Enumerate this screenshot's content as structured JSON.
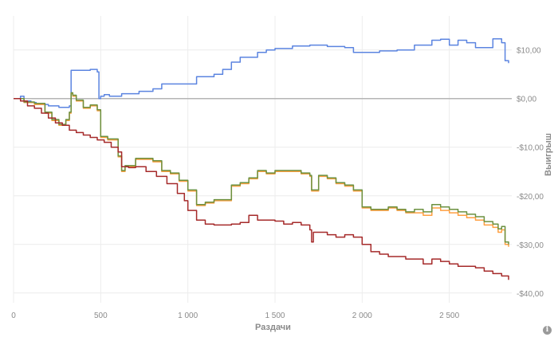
{
  "chart_data": {
    "type": "line",
    "xlabel": "Раздачи",
    "ylabel": "Выигрыш",
    "xlim": [
      0,
      2840
    ],
    "ylim": [
      -42,
      17
    ],
    "x_ticks": [
      {
        "value": 0,
        "label": "0"
      },
      {
        "value": 500,
        "label": "500"
      },
      {
        "value": 1000,
        "label": "1 000"
      },
      {
        "value": 1500,
        "label": "1 500"
      },
      {
        "value": 2000,
        "label": "2 000"
      },
      {
        "value": 2500,
        "label": "2 500"
      }
    ],
    "y_ticks": [
      {
        "value": 10,
        "label": "$10,00"
      },
      {
        "value": 0,
        "label": "$0,00"
      },
      {
        "value": -10,
        "label": "-$10,00"
      },
      {
        "value": -20,
        "label": "-$20,00"
      },
      {
        "value": -30,
        "label": "-$30,00"
      },
      {
        "value": -40,
        "label": "-$40,00"
      }
    ],
    "grid": true,
    "legend": "none",
    "series": [
      {
        "color": "#5b84e0",
        "x": [
          0,
          40,
          60,
          100,
          130,
          200,
          260,
          320,
          330,
          440,
          480,
          490,
          500,
          520,
          550,
          620,
          720,
          800,
          850,
          1000,
          1050,
          1150,
          1200,
          1250,
          1300,
          1400,
          1450,
          1500,
          1600,
          1700,
          1800,
          1900,
          1950,
          2000,
          2050,
          2100,
          2200,
          2300,
          2350,
          2400,
          2450,
          2500,
          2550,
          2600,
          2650,
          2700,
          2750,
          2800,
          2820,
          2840
        ],
        "y": [
          0,
          0.5,
          -0.5,
          -0.8,
          -1.2,
          -1.5,
          -1.8,
          -1.5,
          5.8,
          6,
          5.5,
          0,
          0.5,
          0.8,
          0.5,
          1,
          1.5,
          2,
          3,
          3,
          4.5,
          5,
          6,
          7.5,
          8.5,
          9.5,
          10,
          10.3,
          10.8,
          11,
          10.7,
          10.5,
          9.5,
          9.5,
          9.5,
          9.8,
          10,
          11,
          11,
          12,
          12.2,
          11,
          12,
          11.5,
          10.5,
          10.5,
          12.3,
          11.5,
          7.8,
          7.3
        ]
      },
      {
        "color": "#ff9f40",
        "x": [
          0,
          60,
          120,
          180,
          220,
          260,
          300,
          320,
          330,
          340,
          360,
          400,
          440,
          480,
          500,
          540,
          600,
          620,
          640,
          700,
          750,
          800,
          850,
          900,
          950,
          1000,
          1050,
          1100,
          1150,
          1200,
          1250,
          1300,
          1350,
          1400,
          1450,
          1500,
          1550,
          1600,
          1650,
          1700,
          1710,
          1750,
          1800,
          1850,
          1900,
          1950,
          2000,
          2050,
          2100,
          2150,
          2200,
          2250,
          2300,
          2350,
          2400,
          2450,
          2500,
          2550,
          2600,
          2650,
          2700,
          2750,
          2780,
          2800,
          2820,
          2840
        ],
        "y": [
          0,
          -0.8,
          -1.2,
          -3,
          -4.5,
          -5.5,
          -4.5,
          -3,
          1,
          0.5,
          -0.5,
          -2,
          -1.5,
          -2.5,
          -8,
          -8.5,
          -12,
          -15,
          -14,
          -12.5,
          -12.5,
          -13,
          -15,
          -15.5,
          -17,
          -19,
          -22,
          -21.5,
          -21,
          -21,
          -18,
          -17.5,
          -16.5,
          -15,
          -15.5,
          -15,
          -15,
          -15,
          -15.5,
          -16,
          -19,
          -16,
          -16.5,
          -17.5,
          -18,
          -19,
          -22.5,
          -23,
          -23,
          -22.5,
          -23,
          -23.5,
          -23.5,
          -24,
          -22.5,
          -23,
          -23.5,
          -24,
          -24.5,
          -25,
          -26,
          -26.5,
          -27.5,
          -27,
          -30,
          -30.5
        ]
      },
      {
        "color": "#6b9140",
        "x": [
          0,
          60,
          120,
          180,
          220,
          260,
          300,
          320,
          330,
          340,
          360,
          400,
          440,
          480,
          500,
          540,
          600,
          620,
          640,
          700,
          750,
          800,
          850,
          900,
          950,
          1000,
          1050,
          1100,
          1150,
          1200,
          1250,
          1300,
          1350,
          1400,
          1450,
          1500,
          1550,
          1600,
          1650,
          1700,
          1710,
          1750,
          1800,
          1850,
          1900,
          1950,
          2000,
          2050,
          2100,
          2150,
          2200,
          2250,
          2300,
          2350,
          2400,
          2450,
          2500,
          2550,
          2600,
          2650,
          2700,
          2750,
          2780,
          2800,
          2820,
          2840
        ],
        "y": [
          0,
          -0.7,
          -1,
          -2.8,
          -4.3,
          -5.3,
          -4.3,
          -2.8,
          1.2,
          0.7,
          -0.3,
          -1.8,
          -1.3,
          -2.3,
          -7.8,
          -8.3,
          -11.8,
          -14.8,
          -13.8,
          -12.3,
          -12.3,
          -12.8,
          -14.8,
          -15.3,
          -16.8,
          -18.8,
          -21.8,
          -21.3,
          -20.8,
          -20.8,
          -17.8,
          -17.3,
          -16.3,
          -14.8,
          -15.3,
          -14.8,
          -14.8,
          -14.8,
          -15.3,
          -15.8,
          -18.8,
          -15.8,
          -16.3,
          -17.3,
          -17.8,
          -18.8,
          -22.3,
          -22.8,
          -22.8,
          -22.3,
          -22.8,
          -23.3,
          -22.8,
          -23.3,
          -21.8,
          -22.3,
          -22.8,
          -23.3,
          -23.8,
          -24.3,
          -25.3,
          -25.8,
          -26.8,
          -26.3,
          -29.5,
          -30
        ]
      },
      {
        "color": "#a52a2a",
        "x": [
          0,
          40,
          80,
          120,
          160,
          200,
          240,
          280,
          320,
          360,
          400,
          440,
          480,
          520,
          560,
          600,
          620,
          660,
          700,
          760,
          820,
          880,
          940,
          980,
          1000,
          1050,
          1100,
          1150,
          1200,
          1250,
          1300,
          1350,
          1400,
          1450,
          1500,
          1550,
          1600,
          1650,
          1700,
          1710,
          1720,
          1750,
          1800,
          1850,
          1900,
          1950,
          2000,
          2050,
          2100,
          2150,
          2200,
          2250,
          2300,
          2350,
          2400,
          2450,
          2500,
          2550,
          2600,
          2650,
          2700,
          2750,
          2800,
          2840
        ],
        "y": [
          0,
          -0.5,
          -1.5,
          -2,
          -3,
          -4,
          -5,
          -5.5,
          -6.5,
          -7,
          -7.5,
          -8,
          -8.5,
          -9,
          -10,
          -11,
          -14,
          -14.2,
          -14,
          -15,
          -16,
          -17.5,
          -19.5,
          -21,
          -23,
          -25,
          -25.8,
          -26,
          -26,
          -25.8,
          -25.5,
          -24,
          -25,
          -25,
          -25.2,
          -25.8,
          -25.5,
          -26,
          -27,
          -29.5,
          -27.5,
          -27.5,
          -28,
          -28.5,
          -28,
          -28.5,
          -30,
          -31.5,
          -32,
          -32.5,
          -32.5,
          -33,
          -33,
          -34,
          -33,
          -33.5,
          -34,
          -34.5,
          -34.5,
          -34.8,
          -35.5,
          -36,
          -36.5,
          -37.3
        ]
      }
    ]
  },
  "icons": {
    "info": "info-icon"
  }
}
